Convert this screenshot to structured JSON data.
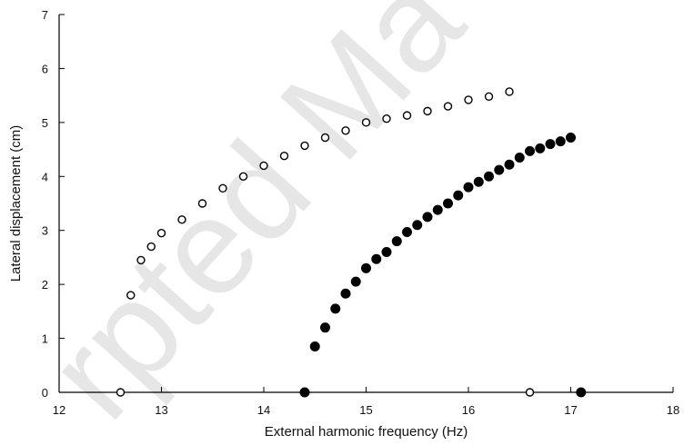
{
  "watermark": {
    "text": "rpted Ma",
    "color": "#e6e6e6"
  },
  "chart_data": {
    "type": "scatter",
    "title": "",
    "xlabel": "External harmonic frequency (Hz)",
    "ylabel": "Lateral displacement (cm)",
    "xlim": [
      12,
      18
    ],
    "ylim": [
      0,
      7
    ],
    "xticks": [
      12,
      13,
      14,
      15,
      16,
      17,
      18
    ],
    "yticks": [
      0,
      1,
      2,
      3,
      4,
      5,
      6,
      7
    ],
    "grid": false,
    "legend": "none",
    "series": [
      {
        "marker": "open-circle",
        "color": "#000000",
        "points": [
          [
            12.6,
            0
          ],
          [
            12.7,
            1.8
          ],
          [
            12.8,
            2.45
          ],
          [
            12.9,
            2.7
          ],
          [
            13.0,
            2.95
          ],
          [
            13.2,
            3.2
          ],
          [
            13.4,
            3.5
          ],
          [
            13.6,
            3.78
          ],
          [
            13.8,
            4.0
          ],
          [
            14.0,
            4.2
          ],
          [
            14.2,
            4.38
          ],
          [
            14.4,
            4.57
          ],
          [
            14.6,
            4.72
          ],
          [
            14.8,
            4.85
          ],
          [
            15.0,
            5.0
          ],
          [
            15.2,
            5.07
          ],
          [
            15.4,
            5.13
          ],
          [
            15.6,
            5.21
          ],
          [
            15.8,
            5.3
          ],
          [
            16.0,
            5.42
          ],
          [
            16.2,
            5.48
          ],
          [
            16.4,
            5.57
          ],
          [
            16.6,
            0
          ]
        ]
      },
      {
        "marker": "filled-circle",
        "color": "#000000",
        "points": [
          [
            14.4,
            0
          ],
          [
            14.5,
            0.85
          ],
          [
            14.6,
            1.2
          ],
          [
            14.7,
            1.55
          ],
          [
            14.8,
            1.83
          ],
          [
            14.9,
            2.05
          ],
          [
            15.0,
            2.3
          ],
          [
            15.1,
            2.47
          ],
          [
            15.2,
            2.6
          ],
          [
            15.3,
            2.8
          ],
          [
            15.4,
            2.97
          ],
          [
            15.5,
            3.1
          ],
          [
            15.6,
            3.25
          ],
          [
            15.7,
            3.38
          ],
          [
            15.8,
            3.5
          ],
          [
            15.9,
            3.65
          ],
          [
            16.0,
            3.8
          ],
          [
            16.1,
            3.9
          ],
          [
            16.2,
            4.0
          ],
          [
            16.3,
            4.12
          ],
          [
            16.4,
            4.22
          ],
          [
            16.5,
            4.35
          ],
          [
            16.6,
            4.47
          ],
          [
            16.7,
            4.52
          ],
          [
            16.8,
            4.6
          ],
          [
            16.9,
            4.65
          ],
          [
            17.0,
            4.72
          ],
          [
            17.1,
            0
          ]
        ]
      }
    ]
  }
}
